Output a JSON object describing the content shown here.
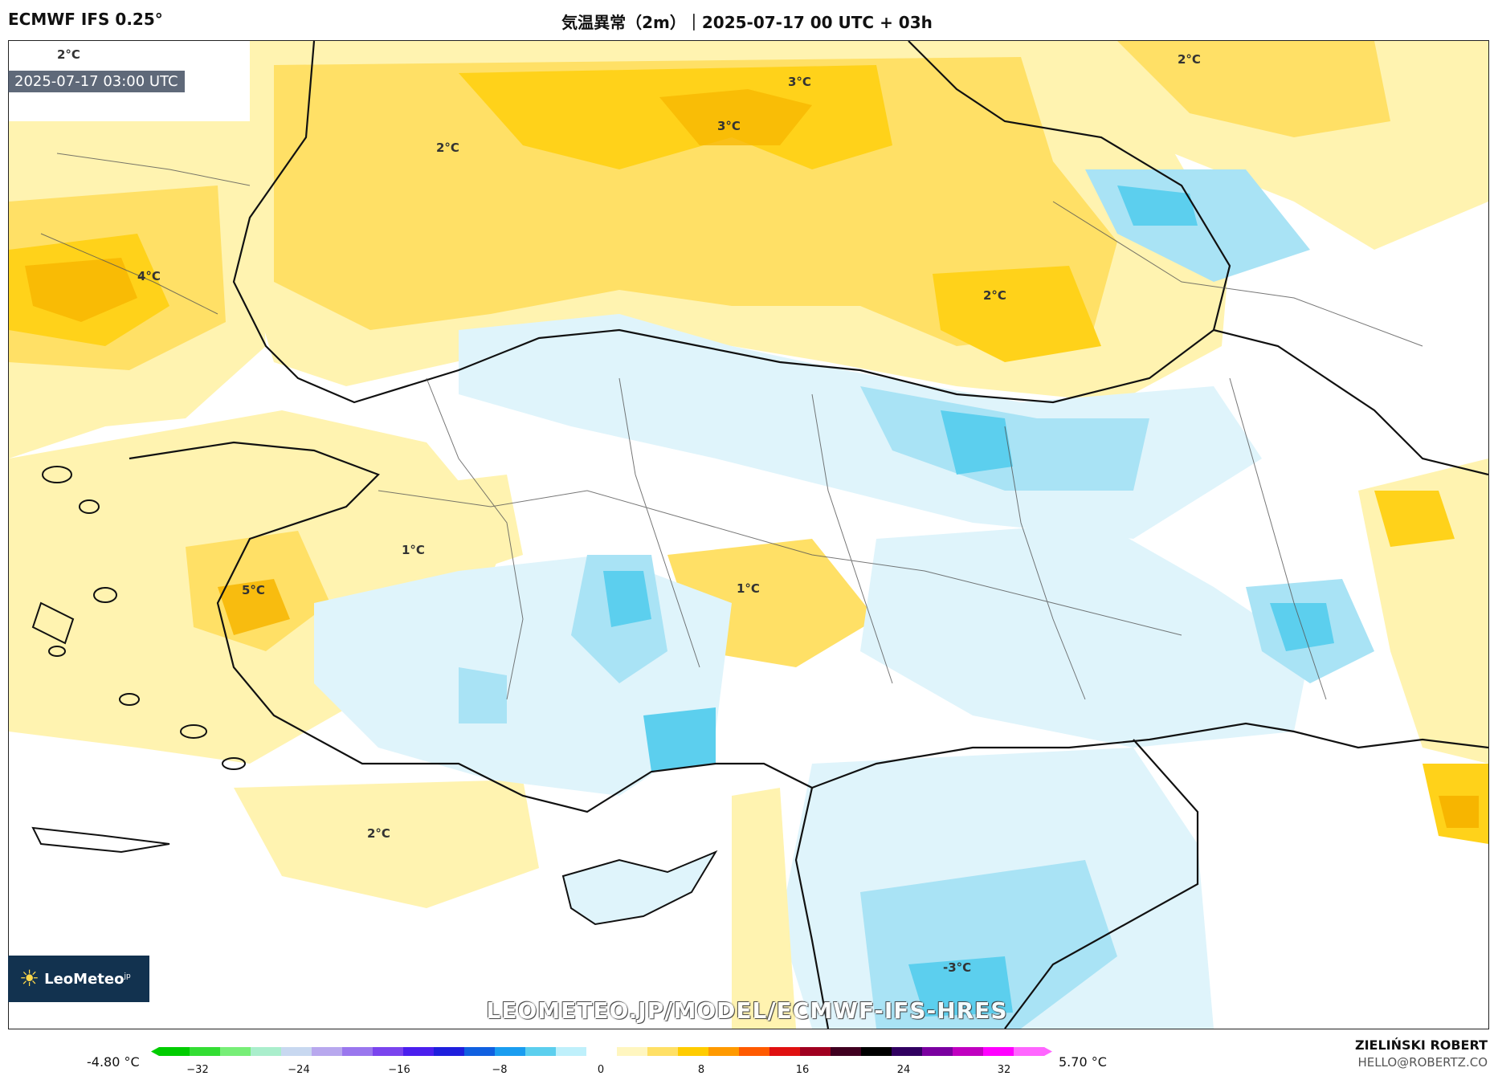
{
  "header": {
    "model": "ECMWF IFS 0.25°",
    "title": "気温異常（2m）｜2025-07-17 00 UTC + 03h"
  },
  "map": {
    "valid_time": "2025-07-17 03:00 UTC",
    "watermark": "LEOMETEO.JP/MODEL/ECMWF-IFS-HRES",
    "logo_text": "LeoMeteo",
    "logo_suffix": "jp",
    "contour_labels": [
      "2°C",
      "3°C",
      "3°C",
      "2°C",
      "2°C",
      "4°C",
      "2°C",
      "1°C",
      "5°C",
      "1°C",
      "2°C",
      "-3°C"
    ],
    "colors": {
      "land_bg": "#ffffff",
      "warm_light": "#fff3b0",
      "warm_mid": "#ffe066",
      "warm_strong": "#ffd21a",
      "warm_hot": "#f7b500",
      "cool_light": "#dff4fb",
      "cool_mid": "#a9e3f5",
      "cool_strong": "#5ccfee",
      "borders": "#222222"
    }
  },
  "legend": {
    "min_label": "-4.80 °C",
    "max_label": "5.70 °C",
    "ticks": [
      "−32",
      "−24",
      "−16",
      "−8",
      "0",
      "8",
      "16",
      "24",
      "32"
    ],
    "colors": [
      "#00cc00",
      "#33dd33",
      "#77ee77",
      "#aaeecc",
      "#c8d8f0",
      "#b8a8ee",
      "#9a77ee",
      "#7a44ee",
      "#4b1fee",
      "#1f1fdd",
      "#1060e0",
      "#1a9df0",
      "#5ccfee",
      "#bff0fb",
      "#ffffff",
      "#fff6c0",
      "#ffe066",
      "#ffcc00",
      "#ff9a00",
      "#ff5a00",
      "#e01010",
      "#a00020",
      "#400020",
      "#000000",
      "#300060",
      "#7a00a0",
      "#c000c0",
      "#ff00ff",
      "#ff66ff"
    ]
  },
  "credit": {
    "name": "ZIELIŃSKI ROBERT",
    "email": "HELLO@ROBERTZ.CO"
  }
}
